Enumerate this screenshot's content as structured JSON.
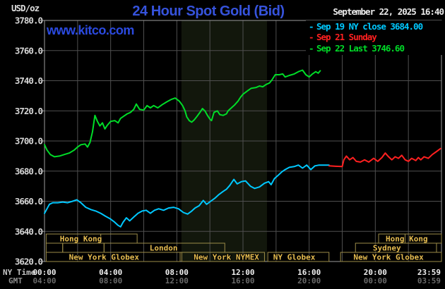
{
  "header": {
    "unit": "USD/oz",
    "title": "24 Hour Spot Gold (Bid)",
    "date": "September 22, 2025 16:40",
    "watermark": "www.kitco.com"
  },
  "legend": {
    "items": [
      {
        "dash": "-",
        "label": "Sep 19 NY close 3684.00",
        "color": "#00c8ff"
      },
      {
        "dash": "-",
        "label": "Sep 21 Sunday",
        "color": "#ff2020"
      },
      {
        "dash": "-",
        "label": "Sep 22 Last 3746.60",
        "color": "#00dc28"
      }
    ]
  },
  "colors": {
    "background": "#000000",
    "title_blue": "#3653dc",
    "watermark_blue": "#2b4ae0",
    "grid": "#4f4f4f",
    "plot_border": "#9b9b9b",
    "nymex_band": "#12170c",
    "y_tick_text": "#d6d6d6",
    "ny_time_label": "#c4c4c4",
    "ny_time_values": "#f0f0f0",
    "gmt_label": "#909090",
    "gmt_values": "#6a6a6a",
    "session_border": "#9c8c48",
    "session_text": "#e6bc50"
  },
  "chart_data": {
    "type": "line",
    "title": "24 Hour Spot Gold (Bid)",
    "ylabel": "USD/oz",
    "ylim": [
      3620,
      3780
    ],
    "xlim_hours": [
      0,
      24
    ],
    "grid_x_every_hours": 2,
    "grid_y_every": 20,
    "legend_position": "top-right",
    "y_axis": {
      "tick_values": [
        3780,
        3760,
        3740,
        3720,
        3700,
        3680,
        3660,
        3640,
        3620
      ],
      "tick_labels": [
        "3780.0",
        "3760.0",
        "3740.0",
        "3720.0",
        "3700.0",
        "3680.0",
        "3660.0",
        "3640.0",
        "3620.0"
      ]
    },
    "x_axis": {
      "row1_label": "NY Time",
      "row2_label": "GMT",
      "ticks": [
        {
          "t": 0,
          "ny": "00:00",
          "gmt": "04:00"
        },
        {
          "t": 4,
          "ny": "04:00",
          "gmt": "08:00"
        },
        {
          "t": 8,
          "ny": "08:00",
          "gmt": "12:00"
        },
        {
          "t": 12,
          "ny": "12:00",
          "gmt": "16:00"
        },
        {
          "t": 16,
          "ny": "16:00",
          "gmt": "20:00"
        },
        {
          "t": 20,
          "ny": "20:00",
          "gmt": "00:00"
        },
        {
          "t": 23.25,
          "ny": "23:59",
          "gmt": "03:59"
        }
      ]
    },
    "shaded_band_hours": [
      8.28,
      13.45
    ],
    "series": [
      {
        "name": "Sep 19 NY close",
        "close": 3684.0,
        "color": "#00c8ff",
        "points": [
          [
            0,
            3652
          ],
          [
            0.15,
            3655
          ],
          [
            0.3,
            3658
          ],
          [
            0.5,
            3659
          ],
          [
            0.8,
            3659
          ],
          [
            1.1,
            3659.5
          ],
          [
            1.4,
            3659
          ],
          [
            1.7,
            3660
          ],
          [
            1.95,
            3661
          ],
          [
            2.2,
            3659
          ],
          [
            2.5,
            3656
          ],
          [
            2.8,
            3654.5
          ],
          [
            3.1,
            3653.5
          ],
          [
            3.4,
            3652
          ],
          [
            3.7,
            3650
          ],
          [
            3.95,
            3648.5
          ],
          [
            4.2,
            3646.5
          ],
          [
            4.45,
            3644
          ],
          [
            4.6,
            3643
          ],
          [
            4.75,
            3646
          ],
          [
            4.95,
            3649
          ],
          [
            5.15,
            3647
          ],
          [
            5.4,
            3649.5
          ],
          [
            5.65,
            3652
          ],
          [
            5.9,
            3653.5
          ],
          [
            6.15,
            3654
          ],
          [
            6.4,
            3652
          ],
          [
            6.65,
            3654
          ],
          [
            6.9,
            3655
          ],
          [
            7.2,
            3654
          ],
          [
            7.5,
            3655.5
          ],
          [
            7.8,
            3656
          ],
          [
            8.1,
            3655
          ],
          [
            8.4,
            3652.5
          ],
          [
            8.65,
            3651.5
          ],
          [
            8.9,
            3653.5
          ],
          [
            9.1,
            3655.5
          ],
          [
            9.35,
            3657
          ],
          [
            9.6,
            3660.5
          ],
          [
            9.8,
            3658
          ],
          [
            10.05,
            3660
          ],
          [
            10.3,
            3662
          ],
          [
            10.55,
            3664.5
          ],
          [
            10.8,
            3666.5
          ],
          [
            11.0,
            3668
          ],
          [
            11.2,
            3670.5
          ],
          [
            11.45,
            3674.5
          ],
          [
            11.65,
            3671.5
          ],
          [
            11.9,
            3673
          ],
          [
            12.15,
            3673.5
          ],
          [
            12.45,
            3670
          ],
          [
            12.7,
            3668.5
          ],
          [
            13.0,
            3669.5
          ],
          [
            13.3,
            3672
          ],
          [
            13.55,
            3673
          ],
          [
            13.7,
            3671
          ],
          [
            13.9,
            3675
          ],
          [
            14.1,
            3677
          ],
          [
            14.35,
            3679.5
          ],
          [
            14.55,
            3681
          ],
          [
            14.8,
            3682.5
          ],
          [
            15.1,
            3683
          ],
          [
            15.35,
            3684
          ],
          [
            15.6,
            3682
          ],
          [
            15.85,
            3684
          ],
          [
            16.1,
            3681
          ],
          [
            16.35,
            3683.5
          ],
          [
            16.6,
            3684
          ],
          [
            16.9,
            3684
          ],
          [
            17.2,
            3684
          ]
        ]
      },
      {
        "name": "Sep 21 Sunday",
        "color": "#ff2020",
        "points": [
          [
            17.2,
            3683.5
          ],
          [
            17.6,
            3683.2
          ],
          [
            18.0,
            3683
          ],
          [
            18.1,
            3687.5
          ],
          [
            18.25,
            3690
          ],
          [
            18.45,
            3687.5
          ],
          [
            18.65,
            3689
          ],
          [
            18.85,
            3686.5
          ],
          [
            19.1,
            3686
          ],
          [
            19.35,
            3687.5
          ],
          [
            19.6,
            3686
          ],
          [
            19.9,
            3688.5
          ],
          [
            20.15,
            3686.5
          ],
          [
            20.4,
            3689
          ],
          [
            20.6,
            3692
          ],
          [
            20.8,
            3689.5
          ],
          [
            21.0,
            3687.5
          ],
          [
            21.2,
            3689.5
          ],
          [
            21.4,
            3688.5
          ],
          [
            21.6,
            3690.5
          ],
          [
            21.8,
            3687.5
          ],
          [
            22.0,
            3686.5
          ],
          [
            22.2,
            3688.5
          ],
          [
            22.45,
            3687
          ],
          [
            22.6,
            3689
          ],
          [
            22.75,
            3687.5
          ],
          [
            22.95,
            3689.5
          ],
          [
            23.2,
            3688.5
          ],
          [
            23.45,
            3691
          ],
          [
            23.7,
            3693
          ],
          [
            23.95,
            3695
          ]
        ]
      },
      {
        "name": "Sep 22 Last",
        "last": 3746.6,
        "color": "#00dc28",
        "points": [
          [
            0,
            3697.5
          ],
          [
            0.15,
            3694
          ],
          [
            0.35,
            3691
          ],
          [
            0.6,
            3689.5
          ],
          [
            0.9,
            3690
          ],
          [
            1.2,
            3691
          ],
          [
            1.5,
            3692
          ],
          [
            1.8,
            3694
          ],
          [
            2.0,
            3696
          ],
          [
            2.2,
            3697.5
          ],
          [
            2.45,
            3698
          ],
          [
            2.6,
            3696
          ],
          [
            2.75,
            3699
          ],
          [
            2.9,
            3706
          ],
          [
            3.05,
            3717
          ],
          [
            3.2,
            3713
          ],
          [
            3.35,
            3710
          ],
          [
            3.5,
            3712
          ],
          [
            3.65,
            3708
          ],
          [
            3.8,
            3710.5
          ],
          [
            4.0,
            3713
          ],
          [
            4.25,
            3713.5
          ],
          [
            4.45,
            3712
          ],
          [
            4.6,
            3715
          ],
          [
            4.8,
            3716.5
          ],
          [
            5.0,
            3718
          ],
          [
            5.2,
            3719
          ],
          [
            5.4,
            3721
          ],
          [
            5.55,
            3724.5
          ],
          [
            5.75,
            3721
          ],
          [
            6.0,
            3720.5
          ],
          [
            6.2,
            3723.5
          ],
          [
            6.4,
            3722
          ],
          [
            6.6,
            3723.5
          ],
          [
            6.85,
            3722
          ],
          [
            7.1,
            3724
          ],
          [
            7.4,
            3726
          ],
          [
            7.65,
            3727.5
          ],
          [
            7.9,
            3728.5
          ],
          [
            8.15,
            3726.5
          ],
          [
            8.35,
            3723.5
          ],
          [
            8.5,
            3720
          ],
          [
            8.6,
            3716
          ],
          [
            8.75,
            3713.5
          ],
          [
            8.9,
            3712.5
          ],
          [
            9.05,
            3714
          ],
          [
            9.2,
            3716
          ],
          [
            9.4,
            3719
          ],
          [
            9.55,
            3721.5
          ],
          [
            9.7,
            3720
          ],
          [
            9.85,
            3717
          ],
          [
            10.0,
            3714.5
          ],
          [
            10.1,
            3713.5
          ],
          [
            10.25,
            3719
          ],
          [
            10.45,
            3720
          ],
          [
            10.6,
            3717.5
          ],
          [
            10.8,
            3717
          ],
          [
            11.0,
            3718
          ],
          [
            11.1,
            3720
          ],
          [
            11.3,
            3722
          ],
          [
            11.5,
            3724
          ],
          [
            11.7,
            3726.5
          ],
          [
            11.85,
            3729
          ],
          [
            12.0,
            3731
          ],
          [
            12.3,
            3733.5
          ],
          [
            12.5,
            3735
          ],
          [
            12.8,
            3735.5
          ],
          [
            13.0,
            3736.5
          ],
          [
            13.2,
            3736
          ],
          [
            13.4,
            3737.5
          ],
          [
            13.6,
            3738.5
          ],
          [
            13.75,
            3740.5
          ],
          [
            13.95,
            3744
          ],
          [
            14.2,
            3744
          ],
          [
            14.4,
            3744.5
          ],
          [
            14.55,
            3742.5
          ],
          [
            14.8,
            3743.5
          ],
          [
            15.1,
            3744.5
          ],
          [
            15.35,
            3746
          ],
          [
            15.6,
            3747
          ],
          [
            15.8,
            3744
          ],
          [
            16.0,
            3742.5
          ],
          [
            16.2,
            3744.5
          ],
          [
            16.4,
            3746
          ],
          [
            16.55,
            3745
          ],
          [
            16.67,
            3746.6
          ]
        ]
      }
    ],
    "sessions": {
      "rows": [
        {
          "boxes": [
            {
              "from": 0.1,
              "to": 3.4
            },
            {
              "from": 3.4,
              "to": 5.6
            },
            {
              "from": 20.2,
              "to": 21.8
            },
            {
              "from": 21.8,
              "to": 24.0
            }
          ],
          "labels": [
            {
              "text": "Hong Kong",
              "at": 2.2
            },
            {
              "text": "Hong Kong",
              "at": 21.9
            }
          ]
        },
        {
          "boxes": [
            {
              "from": 0.1,
              "to": 1.1
            },
            {
              "from": 1.1,
              "to": 3.6
            },
            {
              "from": 3.6,
              "to": 10.9
            },
            {
              "from": 18.8,
              "to": 23.7
            }
          ],
          "labels": [
            {
              "text": "London",
              "at": 7.2
            },
            {
              "text": "Sydney",
              "at": 20.7
            }
          ]
        },
        {
          "boxes": [
            {
              "from": 0.1,
              "to": 8.2
            },
            {
              "from": 8.3,
              "to": 13.3
            },
            {
              "from": 13.5,
              "to": 17.2
            },
            {
              "from": 17.9,
              "to": 24.0
            }
          ],
          "labels": [
            {
              "text": "New York Globex",
              "at": 3.6
            },
            {
              "text": "New York NYMEX",
              "at": 11.0
            },
            {
              "text": "NY Globex",
              "at": 15.1
            },
            {
              "text": "New York Globex",
              "at": 20.8
            }
          ]
        }
      ]
    }
  }
}
